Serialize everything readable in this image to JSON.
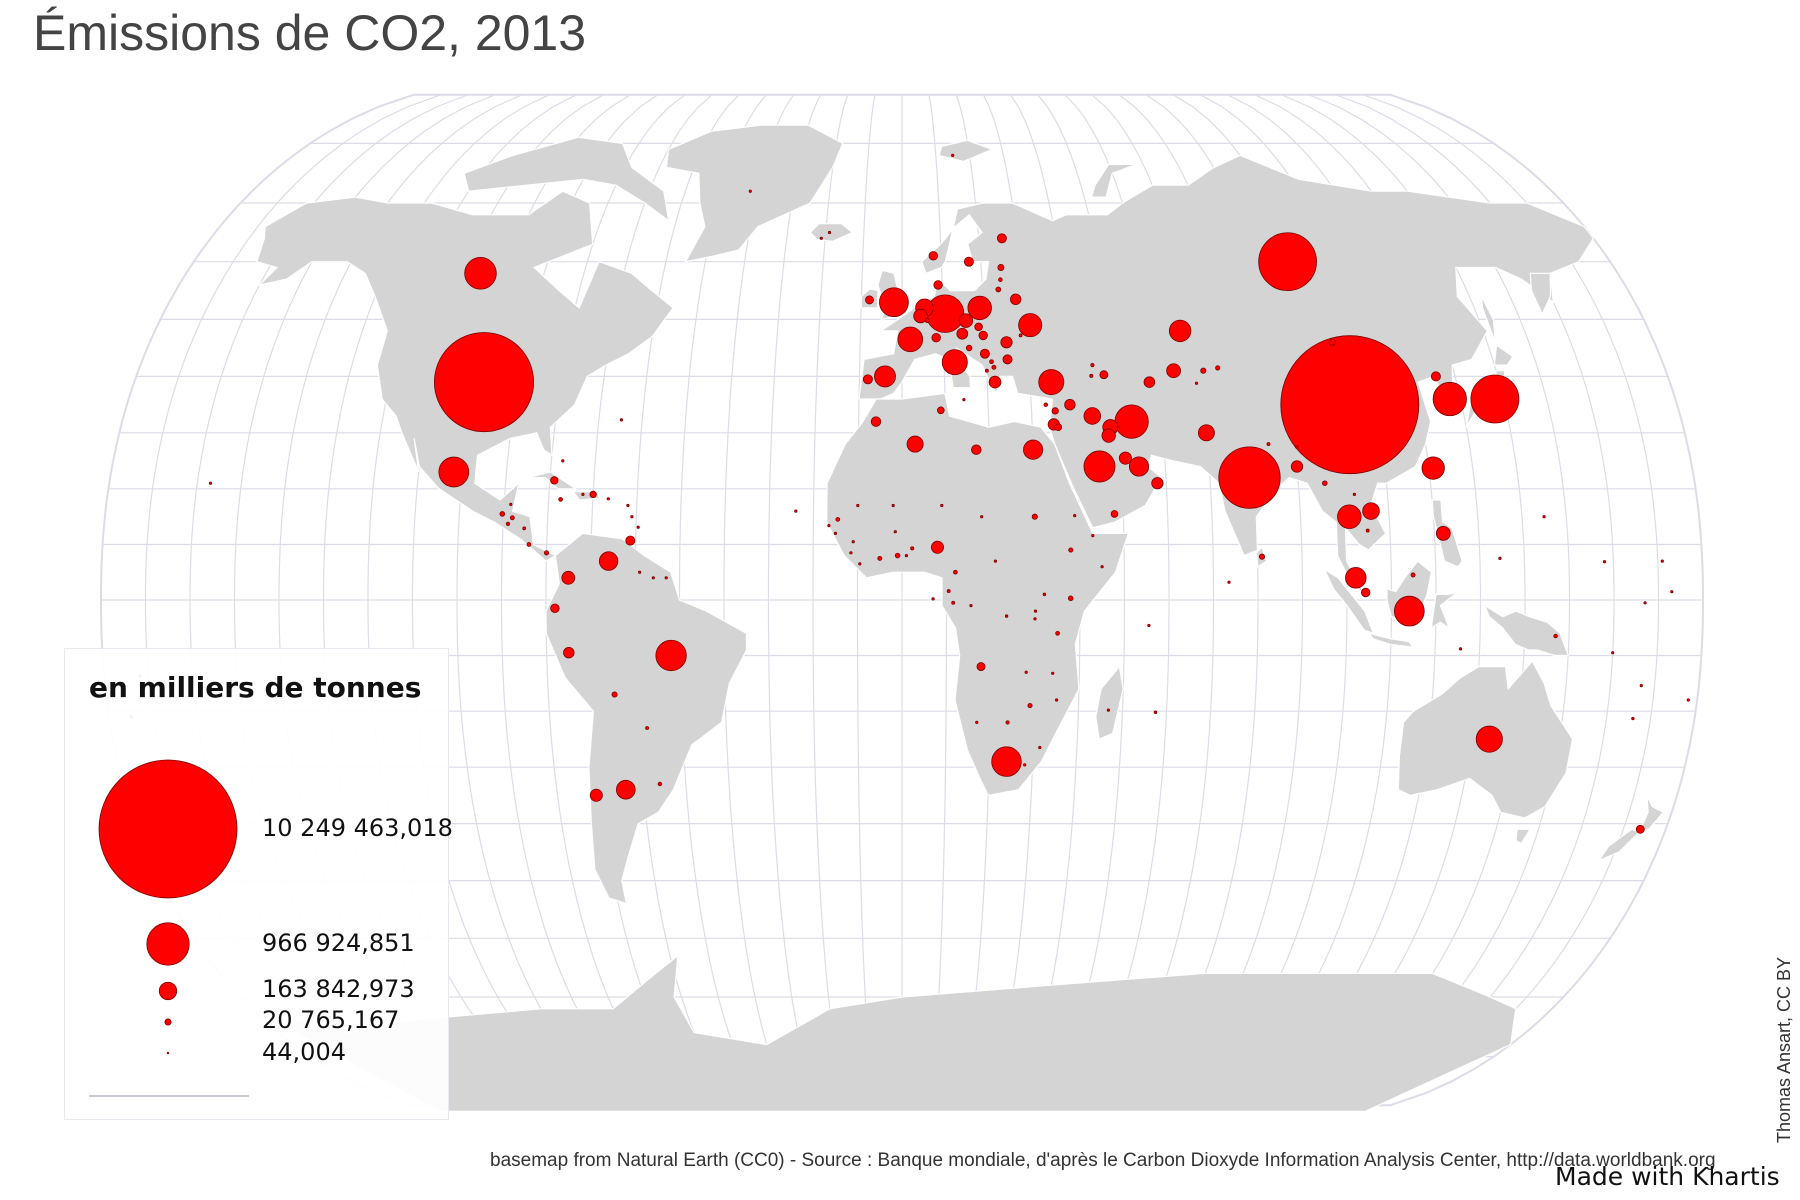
{
  "title": "Émissions de CO2, 2013",
  "legend": {
    "title": "en milliers de tonnes",
    "entries": [
      {
        "label": "10 249 463,018",
        "value": 10249463.018
      },
      {
        "label": "966 924,851",
        "value": 966924.851
      },
      {
        "label": "163 842,973",
        "value": 163842.973
      },
      {
        "label": "20 765,167",
        "value": 20765.167
      },
      {
        "label": "44,004",
        "value": 44.004
      }
    ]
  },
  "source": "basemap from Natural Earth (CC0) - Source : Banque mondiale, d'après le Carbon Dioxyde Information Analysis Center, http://data.worldbank.org",
  "brand": "Made with Khartis",
  "credit": "Thomas Ansart, CC BY",
  "colors": {
    "symbol_fill": "#ff0000",
    "symbol_stroke": "#7a0000",
    "land": "#d4d4d4",
    "graticule": "#dcdce8",
    "borders": "#ffffff",
    "title_text": "#444444"
  },
  "icons": {
    "symbol": "proportional-circle-icon"
  },
  "chart_data": {
    "type": "proportional-symbol-map",
    "title": "Émissions de CO2, 2013",
    "unit": "en milliers de tonnes",
    "year": 2013,
    "symbols": [
      {
        "lon": 104,
        "lat": 35,
        "value": 10249463
      },
      {
        "lon": -98,
        "lat": 39,
        "value": 5300000
      },
      {
        "lon": 79,
        "lat": 22,
        "value": 2030000
      },
      {
        "lon": 98,
        "lat": 60,
        "value": 1800000
      },
      {
        "lon": 138,
        "lat": 36,
        "value": 1240000
      },
      {
        "lon": 10.5,
        "lat": 51,
        "value": 760000
      },
      {
        "lon": 127.5,
        "lat": 36,
        "value": 600000
      },
      {
        "lon": 53,
        "lat": 32,
        "value": 600000
      },
      {
        "lon": -106,
        "lat": 58,
        "value": 540000
      },
      {
        "lon": 45,
        "lat": 24,
        "value": 520000
      },
      {
        "lon": 114,
        "lat": -2,
        "value": 480000
      },
      {
        "lon": -102,
        "lat": 23,
        "value": 480000
      },
      {
        "lon": -52,
        "lat": -10,
        "value": 500000
      },
      {
        "lon": 24,
        "lat": -29,
        "value": 470000
      },
      {
        "lon": 134,
        "lat": -25,
        "value": 370000
      },
      {
        "lon": -2,
        "lat": 53,
        "value": 450000
      },
      {
        "lon": 19,
        "lat": 52,
        "value": 300000
      },
      {
        "lon": 35,
        "lat": 39,
        "value": 340000
      },
      {
        "lon": 2,
        "lat": 46.5,
        "value": 330000
      },
      {
        "lon": 12.5,
        "lat": 42.5,
        "value": 340000
      },
      {
        "lon": 31,
        "lat": 49,
        "value": 290000
      },
      {
        "lon": 67,
        "lat": 48,
        "value": 250000
      },
      {
        "lon": 101,
        "lat": 15,
        "value": 300000
      },
      {
        "lon": -4,
        "lat": 40,
        "value": 240000
      },
      {
        "lon": 102,
        "lat": 4,
        "value": 230000
      },
      {
        "lon": 30,
        "lat": 27,
        "value": 200000
      },
      {
        "lon": 5.5,
        "lat": 52,
        "value": 170000
      },
      {
        "lon": -64,
        "lat": -34,
        "value": 190000
      },
      {
        "lon": 106,
        "lat": 16,
        "value": 150000
      },
      {
        "lon": 64,
        "lat": 41,
        "value": 105000
      },
      {
        "lon": 70,
        "lat": 30,
        "value": 140000
      },
      {
        "lon": 48,
        "lat": 31,
        "value": 125000
      },
      {
        "lon": -66,
        "lat": 7,
        "value": 185000
      },
      {
        "lon": 3,
        "lat": 28,
        "value": 140000
      },
      {
        "lon": 39,
        "lat": 35,
        "value": 60000
      },
      {
        "lon": 54,
        "lat": 24,
        "value": 200000
      },
      {
        "lon": 51,
        "lat": 25.5,
        "value": 80000
      },
      {
        "lon": 47.5,
        "lat": 29.5,
        "value": 98000
      },
      {
        "lon": -71,
        "lat": -35,
        "value": 80000
      },
      {
        "lon": 122,
        "lat": 12,
        "value": 105000
      },
      {
        "lon": 58,
        "lat": 21,
        "value": 70000
      },
      {
        "lon": 15.5,
        "lat": 49.8,
        "value": 100000
      },
      {
        "lon": 8,
        "lat": 9.5,
        "value": 80000
      },
      {
        "lon": -75,
        "lat": 4,
        "value": 90000
      },
      {
        "lon": 58,
        "lat": 39,
        "value": 62000
      },
      {
        "lon": 25,
        "lat": 46,
        "value": 70000
      },
      {
        "lon": 4.5,
        "lat": 50.6,
        "value": 100000
      },
      {
        "lon": 44,
        "lat": 33,
        "value": 150000
      },
      {
        "lon": 21.8,
        "lat": 39,
        "value": 75000
      },
      {
        "lon": 14.5,
        "lat": 47.5,
        "value": 64000
      },
      {
        "lon": 90,
        "lat": 24,
        "value": 70000
      },
      {
        "lon": 104.2,
        "lat": 1.35,
        "value": 40000
      },
      {
        "lon": 174,
        "lat": -41,
        "value": 35000
      },
      {
        "lon": 17,
        "lat": 60,
        "value": 45000
      },
      {
        "lon": 9,
        "lat": 56,
        "value": 40000
      },
      {
        "lon": -8,
        "lat": 39.5,
        "value": 45000
      },
      {
        "lon": -6,
        "lat": 32,
        "value": 50000
      },
      {
        "lon": 9,
        "lat": 34,
        "value": 25000
      },
      {
        "lon": 17,
        "lat": 27,
        "value": 50000
      },
      {
        "lon": -78,
        "lat": -1.5,
        "value": 40000
      },
      {
        "lon": -75,
        "lat": -9.5,
        "value": 60000
      },
      {
        "lon": -8,
        "lat": 53.4,
        "value": 35000
      },
      {
        "lon": 28,
        "lat": 53.5,
        "value": 60000
      },
      {
        "lon": 25,
        "lat": 43,
        "value": 45000
      },
      {
        "lon": 8.2,
        "lat": 46.8,
        "value": 40000
      },
      {
        "lon": 19.5,
        "lat": 47.2,
        "value": 40000
      },
      {
        "lon": 71,
        "lat": 41,
        "value": 15000
      },
      {
        "lon": 103,
        "lat": 46,
        "value": 20000
      },
      {
        "lon": 8,
        "lat": 61,
        "value": 40000
      },
      {
        "lon": -79,
        "lat": 21.5,
        "value": 30000
      },
      {
        "lon": -70,
        "lat": 19,
        "value": 22000
      },
      {
        "lon": 26,
        "lat": 64,
        "value": 45000
      },
      {
        "lon": 19.7,
        "lat": 44,
        "value": 45000
      },
      {
        "lon": 16,
        "lat": 45,
        "value": 17000
      },
      {
        "lon": 47.5,
        "lat": 40.3,
        "value": 35000
      },
      {
        "lon": 81,
        "lat": 7.8,
        "value": 15000
      },
      {
        "lon": 38,
        "lat": 9,
        "value": 10000
      },
      {
        "lon": 37.9,
        "lat": 0.3,
        "value": 12000
      },
      {
        "lon": 25,
        "lat": 59,
        "value": 20000
      },
      {
        "lon": 1,
        "lat": 8,
        "value": 3000
      },
      {
        "lon": -1,
        "lat": 8,
        "value": 12000
      },
      {
        "lon": -5,
        "lat": 7.5,
        "value": 9000
      },
      {
        "lon": -14.5,
        "lat": 14.5,
        "value": 8000
      },
      {
        "lon": 12,
        "lat": 5,
        "value": 8000
      },
      {
        "lon": 17.8,
        "lat": -12,
        "value": 35000
      },
      {
        "lon": 29,
        "lat": -19,
        "value": 10000
      },
      {
        "lon": 28,
        "lat": -13,
        "value": 3000
      },
      {
        "lon": 35,
        "lat": -6,
        "value": 8000
      },
      {
        "lon": 32,
        "lat": 1,
        "value": 4000
      },
      {
        "lon": 30,
        "lat": 15,
        "value": 15000
      },
      {
        "lon": 48,
        "lat": 15.5,
        "value": 25000
      },
      {
        "lon": 43,
        "lat": 11.6,
        "value": 1000
      },
      {
        "lon": -65,
        "lat": -17,
        "value": 15000
      },
      {
        "lon": -58,
        "lat": -23,
        "value": 5000
      },
      {
        "lon": -56,
        "lat": -33,
        "value": 7000
      },
      {
        "lon": -88,
        "lat": 14.8,
        "value": 9000
      },
      {
        "lon": -90.3,
        "lat": 15.5,
        "value": 12000
      },
      {
        "lon": -84,
        "lat": 10,
        "value": 8000
      },
      {
        "lon": -80,
        "lat": 8.5,
        "value": 10000
      },
      {
        "lon": -77.3,
        "lat": 18.1,
        "value": 8000
      },
      {
        "lon": -61.2,
        "lat": 10.7,
        "value": 45000
      },
      {
        "lon": 35.5,
        "lat": 33.9,
        "value": 22000
      },
      {
        "lon": 35,
        "lat": 31.5,
        "value": 70000
      },
      {
        "lon": 36,
        "lat": 31,
        "value": 25000
      },
      {
        "lon": 84,
        "lat": 28,
        "value": 5000
      },
      {
        "lon": 69,
        "lat": 38.8,
        "value": 3000
      },
      {
        "lon": 74.5,
        "lat": 41.5,
        "value": 10000
      },
      {
        "lon": 33.4,
        "lat": 35,
        "value": 7000
      },
      {
        "lon": 14.4,
        "lat": 35.9,
        "value": 2000
      },
      {
        "lon": 21.2,
        "lat": 42.6,
        "value": 8000
      },
      {
        "lon": 21.7,
        "lat": 41.6,
        "value": 9000
      },
      {
        "lon": 20,
        "lat": 41,
        "value": 5000
      },
      {
        "lon": 18.5,
        "lat": 48.7,
        "value": 32000
      },
      {
        "lon": 23.9,
        "lat": 55.2,
        "value": 13000
      },
      {
        "lon": 24.6,
        "lat": 56.9,
        "value": 7500
      },
      {
        "lon": 45,
        "lat": 42,
        "value": 6000
      },
      {
        "lon": 44.5,
        "lat": 40.1,
        "value": 5500
      },
      {
        "lon": 28.5,
        "lat": 47.2,
        "value": 5000
      },
      {
        "lon": 6.1,
        "lat": 49.8,
        "value": 10000
      },
      {
        "lon": -19,
        "lat": 65,
        "value": 2000
      },
      {
        "lon": 11.5,
        "lat": -0.5,
        "value": 5000
      },
      {
        "lon": 15.5,
        "lat": -1,
        "value": 3000
      },
      {
        "lon": 35,
        "lat": -18,
        "value": 3000
      },
      {
        "lon": 46.8,
        "lat": -19.8,
        "value": 2500
      },
      {
        "lon": 24,
        "lat": -22,
        "value": 6000
      },
      {
        "lon": 57.5,
        "lat": -20.2,
        "value": 4000
      },
      {
        "lon": 55.5,
        "lat": -4.6,
        "value": 500
      },
      {
        "lon": 147,
        "lat": -6.5,
        "value": 7000
      },
      {
        "lon": 160,
        "lat": -9.5,
        "value": 200
      },
      {
        "lon": 178,
        "lat": -18,
        "value": 1200
      },
      {
        "lon": 166,
        "lat": -21.3,
        "value": 3500
      },
      {
        "lon": 18,
        "lat": 15,
        "value": 500
      },
      {
        "lon": -10,
        "lat": 17,
        "value": 2500
      },
      {
        "lon": -2,
        "lat": 17,
        "value": 1000
      },
      {
        "lon": -1.5,
        "lat": 12.3,
        "value": 2000
      },
      {
        "lon": 9,
        "lat": 17,
        "value": 1500
      },
      {
        "lon": 2.3,
        "lat": 9.3,
        "value": 5500
      },
      {
        "lon": -11.5,
        "lat": 8.5,
        "value": 600
      },
      {
        "lon": -9.5,
        "lat": 6.5,
        "value": 800
      },
      {
        "lon": -11,
        "lat": 10.5,
        "value": 1000
      },
      {
        "lon": -15,
        "lat": 12,
        "value": 300
      },
      {
        "lon": -16.5,
        "lat": 13.4,
        "value": 500
      },
      {
        "lon": -24,
        "lat": 16,
        "value": 500
      },
      {
        "lon": 21,
        "lat": 7,
        "value": 300
      },
      {
        "lon": 23.5,
        "lat": -2.9,
        "value": 3500
      },
      {
        "lon": 30,
        "lat": -2,
        "value": 700
      },
      {
        "lon": 29.9,
        "lat": -3.4,
        "value": 400
      },
      {
        "lon": 34,
        "lat": -13.2,
        "value": 1300
      },
      {
        "lon": 31.5,
        "lat": -26.5,
        "value": 1000
      },
      {
        "lon": 28.2,
        "lat": -29.6,
        "value": 20
      },
      {
        "lon": 17,
        "lat": -22,
        "value": 3000
      },
      {
        "lon": 10.5,
        "lat": 1.6,
        "value": 5000
      },
      {
        "lon": 7,
        "lat": 0.2,
        "value": 100
      },
      {
        "lon": 45,
        "lat": 6,
        "value": 600
      },
      {
        "lon": 39,
        "lat": 15.2,
        "value": 700
      },
      {
        "lon": 73.5,
        "lat": 3.2,
        "value": 1100
      },
      {
        "lon": 90.4,
        "lat": 27.5,
        "value": 800
      },
      {
        "lon": 102.5,
        "lat": 19,
        "value": 2000
      },
      {
        "lon": 96,
        "lat": 21,
        "value": 12000
      },
      {
        "lon": 105,
        "lat": 12.5,
        "value": 5000
      },
      {
        "lon": 125.5,
        "lat": 40,
        "value": 45000
      },
      {
        "lon": 121,
        "lat": 23.7,
        "value": 270000
      },
      {
        "lon": 114.9,
        "lat": 4.5,
        "value": 9000
      },
      {
        "lon": 125.7,
        "lat": -8.8,
        "value": 200
      },
      {
        "lon": -59.5,
        "lat": 13.1,
        "value": 1500
      },
      {
        "lon": -72.3,
        "lat": 19,
        "value": 2300
      },
      {
        "lon": -77.4,
        "lat": 25,
        "value": 2000
      },
      {
        "lon": -88.9,
        "lat": 13.7,
        "value": 6500
      },
      {
        "lon": -85.2,
        "lat": 12.9,
        "value": 4500
      },
      {
        "lon": -88.5,
        "lat": 17.2,
        "value": 500
      },
      {
        "lon": -59,
        "lat": 5,
        "value": 1700
      },
      {
        "lon": -55.9,
        "lat": 4,
        "value": 1800
      },
      {
        "lon": -53,
        "lat": 4,
        "value": 500
      },
      {
        "lon": -66.5,
        "lat": 18.2,
        "value": 2000
      },
      {
        "lon": -61,
        "lat": 15,
        "value": 500
      },
      {
        "lon": -62,
        "lat": 17,
        "value": 500
      },
      {
        "lon": -64.8,
        "lat": 32.3,
        "value": 500
      },
      {
        "lon": -42,
        "lat": 72,
        "value": 500
      },
      {
        "lon": -21,
        "lat": 64,
        "value": 300
      },
      {
        "lon": 15,
        "lat": 78,
        "value": 200
      },
      {
        "lon": -157,
        "lat": 21,
        "value": 100
      },
      {
        "lon": 145,
        "lat": 15,
        "value": 100
      },
      {
        "lon": 171,
        "lat": 7,
        "value": 100
      },
      {
        "lon": 173,
        "lat": 1.5,
        "value": 60
      },
      {
        "lon": -149.5,
        "lat": -17.6,
        "value": 900
      },
      {
        "lon": -175,
        "lat": -21,
        "value": 120
      },
      {
        "lon": -172,
        "lat": -13.7,
        "value": 200
      },
      {
        "lon": 167,
        "lat": -15.4,
        "value": 100
      },
      {
        "lon": 134.5,
        "lat": 7.5,
        "value": 200
      },
      {
        "lon": 158,
        "lat": 6.9,
        "value": 100
      },
      {
        "lon": 167,
        "lat": -0.5,
        "value": 44
      }
    ]
  }
}
